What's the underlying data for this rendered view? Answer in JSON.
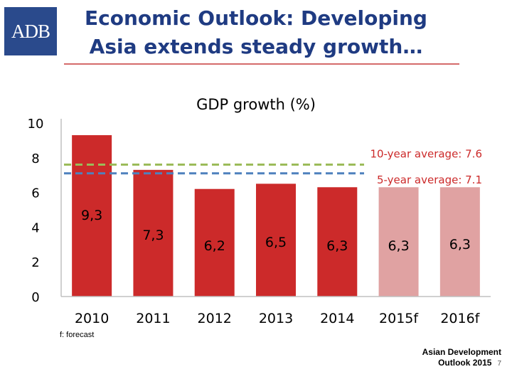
{
  "header": {
    "logo_text": "ADB",
    "title_line1": "Economic Outlook: Developing",
    "title_line2": "Asia extends steady growth…"
  },
  "chart_data": {
    "type": "bar",
    "title": "GDP growth (%)",
    "categories": [
      "2010",
      "2011",
      "2012",
      "2013",
      "2014",
      "2015f",
      "2016f"
    ],
    "values": [
      9.3,
      7.3,
      6.2,
      6.5,
      6.3,
      6.3,
      6.3
    ],
    "value_labels": [
      "9,3",
      "7,3",
      "6,2",
      "6,5",
      "6,3",
      "6,3",
      "6,3"
    ],
    "forecast": [
      false,
      false,
      false,
      false,
      false,
      true,
      true
    ],
    "ylim": [
      0,
      10
    ],
    "yticks": [
      0,
      2,
      4,
      6,
      8,
      10
    ],
    "xlabel": "",
    "ylabel": "",
    "reference_lines": [
      {
        "label": "10-year average: 7.6",
        "value": 7.6,
        "color": "#9bbb59"
      },
      {
        "label": "5-year average: 7.1",
        "value": 7.1,
        "color": "#4f81bd"
      }
    ],
    "colors": {
      "actual": "#cc2a2a",
      "forecast": "#e0a2a2",
      "axis": "#c0c0c0"
    }
  },
  "footnote": "f: forecast",
  "source": {
    "line1": "Asian Development",
    "line2": "Outlook 2015",
    "page": "7"
  }
}
